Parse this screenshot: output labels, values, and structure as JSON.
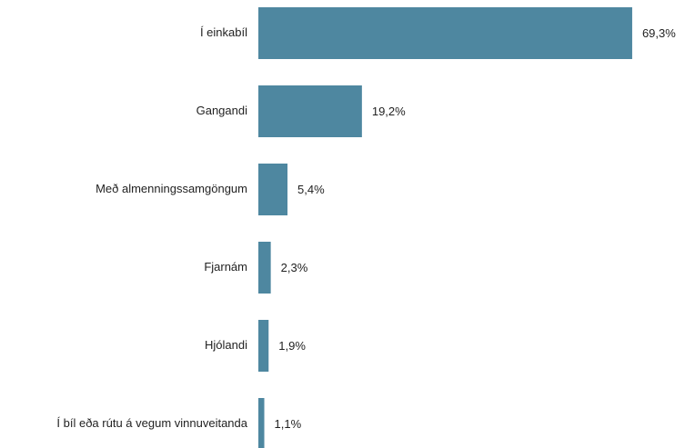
{
  "chart_data": {
    "type": "barh",
    "categories": [
      "Í einkabíl",
      "Gangandi",
      "Með almenningssamgöngum",
      "Fjarnám",
      "Hjólandi",
      "Í bíl eða rútu á vegum vinnuveitanda"
    ],
    "values": [
      69.3,
      19.2,
      5.4,
      2.3,
      1.9,
      1.1
    ],
    "value_labels": [
      "69,3%",
      "19,2%",
      "5,4%",
      "2,3%",
      "1,9%",
      "1,1%"
    ],
    "color": "#4e87a0"
  }
}
